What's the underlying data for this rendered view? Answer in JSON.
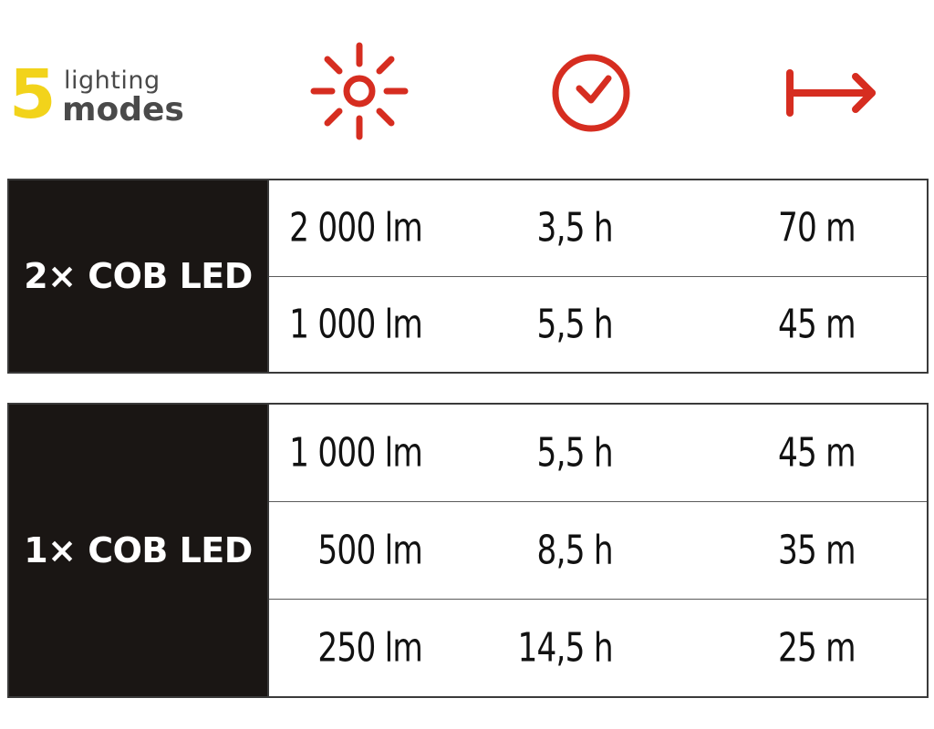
{
  "logo": {
    "number": "5",
    "line1": "lighting",
    "line2": "modes"
  },
  "header_icons": {
    "brightness": "sun-icon",
    "runtime": "clock-icon",
    "range": "distance-arrow-icon",
    "color": "#d62d20"
  },
  "groups": [
    {
      "label": "2× COB LED",
      "rows": [
        {
          "lumens": "2 000 lm",
          "hours": "3,5 h",
          "range": "70 m"
        },
        {
          "lumens": "1 000 lm",
          "hours": "5,5 h",
          "range": "45 m"
        }
      ]
    },
    {
      "label": "1× COB LED",
      "rows": [
        {
          "lumens": "1 000 lm",
          "hours": "5,5 h",
          "range": "45 m"
        },
        {
          "lumens": "500 lm",
          "hours": "8,5 h",
          "range": "35 m"
        },
        {
          "lumens": "250 lm",
          "hours": "14,5 h",
          "range": "25 m"
        }
      ]
    }
  ]
}
